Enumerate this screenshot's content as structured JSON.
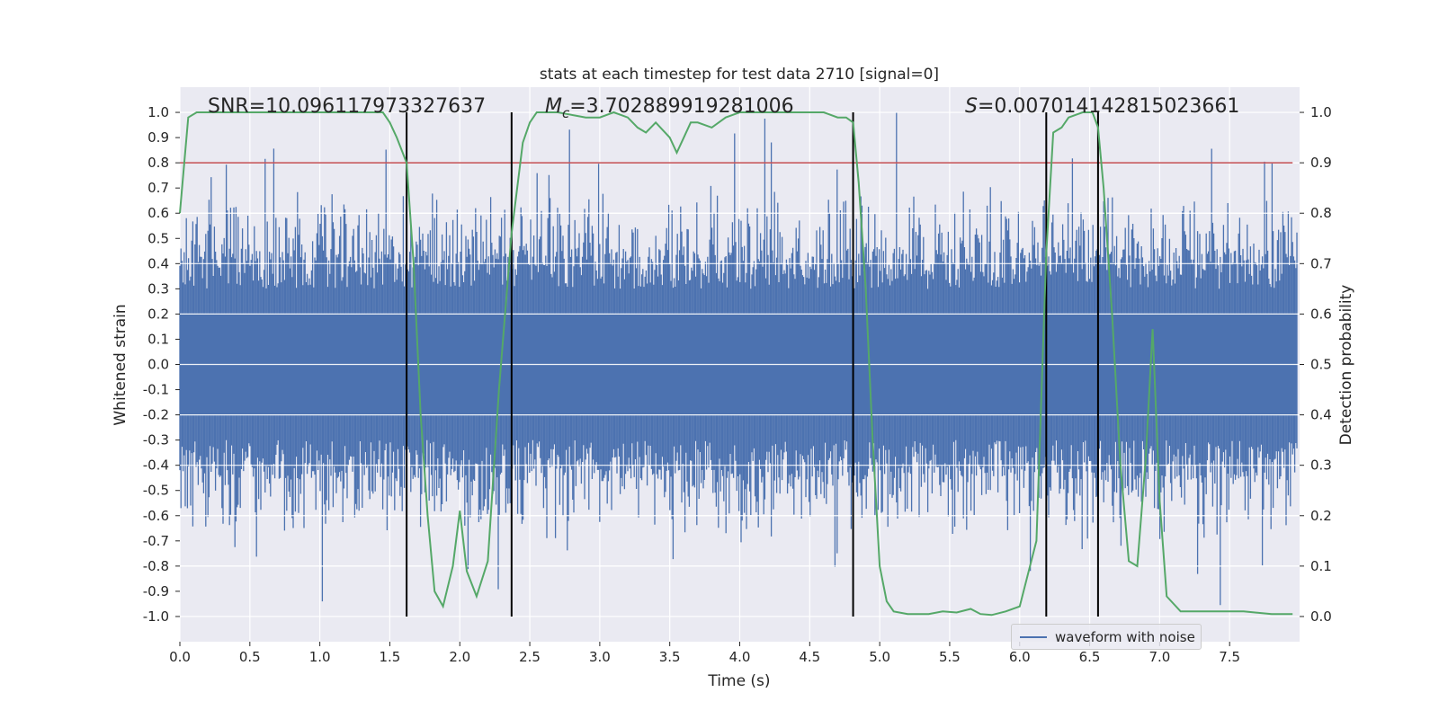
{
  "chart_data": {
    "type": "line",
    "title": "stats at each timestep for test data 2710 [signal=0]",
    "xlabel": "Time (s)",
    "ylabel": "Whitened strain",
    "y2label": "Detection probability",
    "xlim": [
      0,
      8
    ],
    "ylim": [
      -1.1,
      1.1
    ],
    "y2lim": [
      -0.05,
      1.05
    ],
    "x_ticks": [
      "0.0",
      "0.5",
      "1.0",
      "1.5",
      "2.0",
      "2.5",
      "3.0",
      "3.5",
      "4.0",
      "4.5",
      "5.0",
      "5.5",
      "6.0",
      "6.5",
      "7.0",
      "7.5"
    ],
    "y_ticks": [
      "1.0",
      "0.9",
      "0.8",
      "0.7",
      "0.6",
      "0.5",
      "0.4",
      "0.3",
      "0.2",
      "0.1",
      "0.0",
      "-0.1",
      "-0.2",
      "-0.3",
      "-0.4",
      "-0.5",
      "-0.6",
      "-0.7",
      "-0.8",
      "-0.9",
      "-1.0"
    ],
    "y2_ticks": [
      "1.0",
      "0.9",
      "0.8",
      "0.7",
      "0.6",
      "0.5",
      "0.4",
      "0.3",
      "0.2",
      "0.1",
      "0.0"
    ],
    "annotations": {
      "snr": "SNR=10.096117973327637",
      "mc_symbol": "M",
      "mc_sub": "c",
      "mc_value": "=3.702889919281006",
      "s_symbol": "S",
      "s_value": "=0.007014142815023661"
    },
    "threshold": 0.9,
    "vertical_lines": [
      1.62,
      2.37,
      4.81,
      6.19,
      6.56
    ],
    "series": [
      {
        "name": "waveform with noise",
        "color": "#4c72b0",
        "description_level": "dense noise, bulk within ±0.4, peaks reach about ±1.0"
      },
      {
        "color": "#55a868",
        "axis": "right",
        "x": [
          0.0,
          0.06,
          0.12,
          0.2,
          0.4,
          0.8,
          1.2,
          1.45,
          1.5,
          1.55,
          1.62,
          1.67,
          1.72,
          1.77,
          1.82,
          1.88,
          1.95,
          2.0,
          2.05,
          2.12,
          2.2,
          2.28,
          2.37,
          2.45,
          2.5,
          2.55,
          2.6,
          2.7,
          2.9,
          3.0,
          3.1,
          3.2,
          3.27,
          3.33,
          3.4,
          3.5,
          3.55,
          3.6,
          3.65,
          3.7,
          3.8,
          3.9,
          4.0,
          4.2,
          4.4,
          4.6,
          4.7,
          4.76,
          4.81,
          4.85,
          4.9,
          4.95,
          5.0,
          5.05,
          5.1,
          5.2,
          5.35,
          5.45,
          5.55,
          5.65,
          5.72,
          5.8,
          5.9,
          6.0,
          6.12,
          6.19,
          6.24,
          6.3,
          6.35,
          6.45,
          6.52,
          6.56,
          6.6,
          6.66,
          6.72,
          6.78,
          6.84,
          6.9,
          6.95,
          7.0,
          7.05,
          7.15,
          7.25,
          7.4,
          7.6,
          7.8,
          7.95
        ],
        "y": [
          0.8,
          0.99,
          1.0,
          1.0,
          1.0,
          1.0,
          1.0,
          1.0,
          0.98,
          0.95,
          0.9,
          0.7,
          0.4,
          0.2,
          0.05,
          0.02,
          0.1,
          0.21,
          0.09,
          0.04,
          0.11,
          0.45,
          0.76,
          0.94,
          0.98,
          1.0,
          1.0,
          1.0,
          0.99,
          0.99,
          1.0,
          0.99,
          0.97,
          0.96,
          0.98,
          0.95,
          0.92,
          0.95,
          0.98,
          0.98,
          0.97,
          0.99,
          1.0,
          1.0,
          1.0,
          1.0,
          0.99,
          0.99,
          0.98,
          0.86,
          0.65,
          0.35,
          0.1,
          0.03,
          0.01,
          0.005,
          0.005,
          0.01,
          0.008,
          0.015,
          0.005,
          0.003,
          0.01,
          0.02,
          0.15,
          0.72,
          0.96,
          0.97,
          0.99,
          1.0,
          1.0,
          0.97,
          0.85,
          0.6,
          0.3,
          0.11,
          0.1,
          0.31,
          0.57,
          0.23,
          0.04,
          0.01,
          0.01,
          0.01,
          0.01,
          0.005,
          0.005
        ]
      },
      {
        "color": "#c44e52",
        "axis": "right",
        "x": [
          0.0,
          7.95
        ],
        "y": [
          0.9,
          0.9
        ]
      }
    ],
    "legend": "bottom-right",
    "grid": true
  }
}
